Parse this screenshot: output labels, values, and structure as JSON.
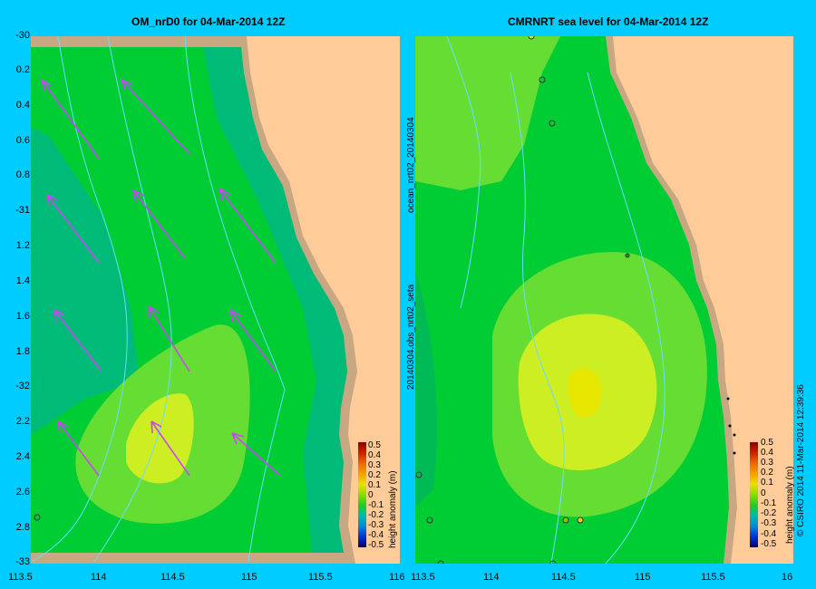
{
  "left_panel": {
    "title": "OM_nrD0 for 04-Mar-2014 12Z"
  },
  "right_panel": {
    "title": "CMRNRT sea level  for 04-Mar-2014 12Z",
    "side_text_top": "ocean_nrt02_20140304",
    "side_text_bottom": "20140304.obs_nrt02_seta"
  },
  "y_axis_labels": [
    "-30",
    "0.2",
    "0.4",
    "0.6",
    "0.8",
    "-31",
    "1.2",
    "1.4",
    "1.6",
    "1.8",
    "-32",
    "2.2",
    "2.4",
    "2.6",
    "2.8",
    "-33"
  ],
  "x_axis_labels_left": [
    "113.5",
    "114",
    "114.5",
    "115",
    "115.5",
    "116"
  ],
  "x_axis_labels_right": [
    "113.5",
    "114",
    "114.5",
    "115",
    "115.5",
    "16"
  ],
  "colorbar": {
    "label": "height anomaly (m)",
    "ticks": [
      "0.5",
      "0.4",
      "0.3",
      "0.2",
      "0.1",
      "0",
      "-0.1",
      "-0.2",
      "-0.3",
      "-0.4",
      "-0.5"
    ]
  },
  "credit": "© CSIRO 2014   11-Mar-2014 12:39:36",
  "colors": {
    "background": "#00ccff",
    "land": "#ffcc99",
    "coast": "#c8a882",
    "sea_light_green": "#66dd33",
    "sea_green": "#00cc33",
    "sea_teal": "#00bb77",
    "anomaly_peak": "#ccee22",
    "arrows": "#cc44ff"
  }
}
